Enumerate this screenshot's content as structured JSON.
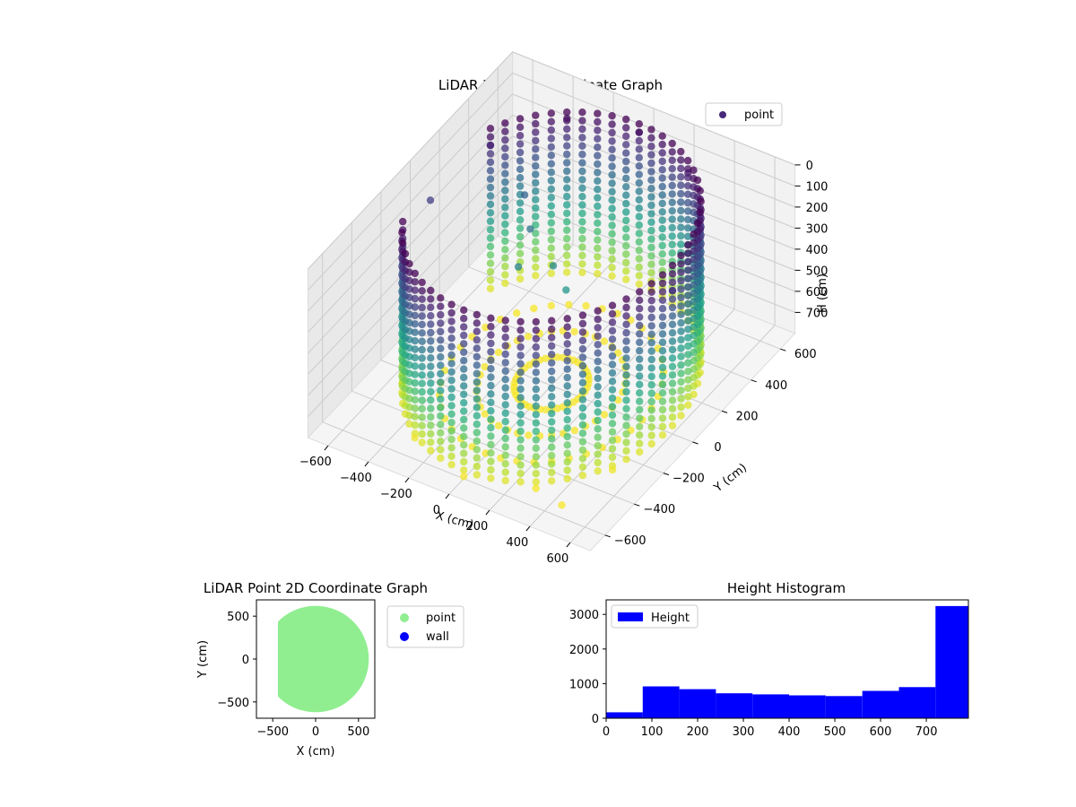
{
  "chart_data": [
    {
      "type": "scatter",
      "projection": "3d",
      "title": "LiDAR Point 3D Coordinate Graph",
      "xlabel": "X (cm)",
      "ylabel": "Y (cm)",
      "zlabel": "H (cm)",
      "xlim": [
        -700,
        700
      ],
      "ylim": [
        -700,
        700
      ],
      "zlim": [
        0,
        800
      ],
      "z_inverted": true,
      "xticks": [
        -600,
        -400,
        -200,
        0,
        200,
        400,
        600
      ],
      "yticks": [
        -600,
        -400,
        -200,
        0,
        200,
        400,
        600
      ],
      "zticks": [
        0,
        100,
        200,
        300,
        400,
        500,
        600,
        700
      ],
      "colormap": "viridis",
      "grid": true,
      "legend": {
        "position": "top-right",
        "entries": [
          {
            "label": "point",
            "color": "#482878"
          }
        ]
      },
      "series": [
        {
          "name": "point",
          "description_shape": "cylindrical wall",
          "radius_cm": 600,
          "h_range": [
            0,
            790
          ],
          "opening_angle_range_deg": [
            150,
            210
          ],
          "x": [
            -600,
            -520,
            -300,
            0,
            300,
            520,
            600,
            520,
            300,
            0,
            -300,
            -520,
            -200,
            -100,
            0,
            -250,
            -350,
            450
          ],
          "y": [
            0,
            300,
            520,
            600,
            520,
            300,
            0,
            -300,
            -520,
            -600,
            -520,
            -300,
            50,
            150,
            100,
            200,
            300,
            -550
          ],
          "h": [
            150,
            80,
            30,
            40,
            60,
            80,
            120,
            780,
            790,
            790,
            780,
            760,
            350,
            380,
            420,
            300,
            250,
            790
          ]
        }
      ]
    },
    {
      "type": "scatter",
      "title": "LiDAR Point 2D Coordinate Graph",
      "xlabel": "X (cm)",
      "ylabel": "Y (cm)",
      "xlim": [
        -690,
        690
      ],
      "ylim": [
        -690,
        690
      ],
      "xticks": [
        -500,
        0,
        500
      ],
      "yticks": [
        -500,
        0,
        500
      ],
      "grid": false,
      "legend": {
        "position": "outside-right",
        "entries": [
          {
            "label": "point",
            "color": "#90ee90"
          },
          {
            "label": "wall",
            "color": "#0000ff"
          }
        ]
      },
      "series": [
        {
          "name": "point",
          "color": "#90ee90",
          "fill_radius_cm": 620,
          "opening_x_range": [
            -690,
            -440
          ]
        },
        {
          "name": "wall",
          "color": "#0000ff",
          "points": []
        }
      ]
    },
    {
      "type": "bar",
      "histogram": true,
      "title": "Height Histogram",
      "xlabel": "",
      "ylabel": "",
      "xlim": [
        0,
        792
      ],
      "ylim": [
        0,
        3420
      ],
      "xticks": [
        0,
        100,
        200,
        300,
        400,
        500,
        600,
        700
      ],
      "yticks": [
        0,
        1000,
        2000,
        3000
      ],
      "color": "#0000ff",
      "legend": {
        "position": "top-left",
        "entries": [
          {
            "label": "Height",
            "color": "#0000ff"
          }
        ]
      },
      "bin_edges": [
        0,
        80,
        160,
        240,
        320,
        400,
        480,
        560,
        640,
        720,
        792
      ],
      "series": [
        {
          "name": "Height",
          "values": [
            170,
            920,
            840,
            720,
            690,
            660,
            640,
            790,
            900,
            3240
          ]
        }
      ]
    }
  ]
}
